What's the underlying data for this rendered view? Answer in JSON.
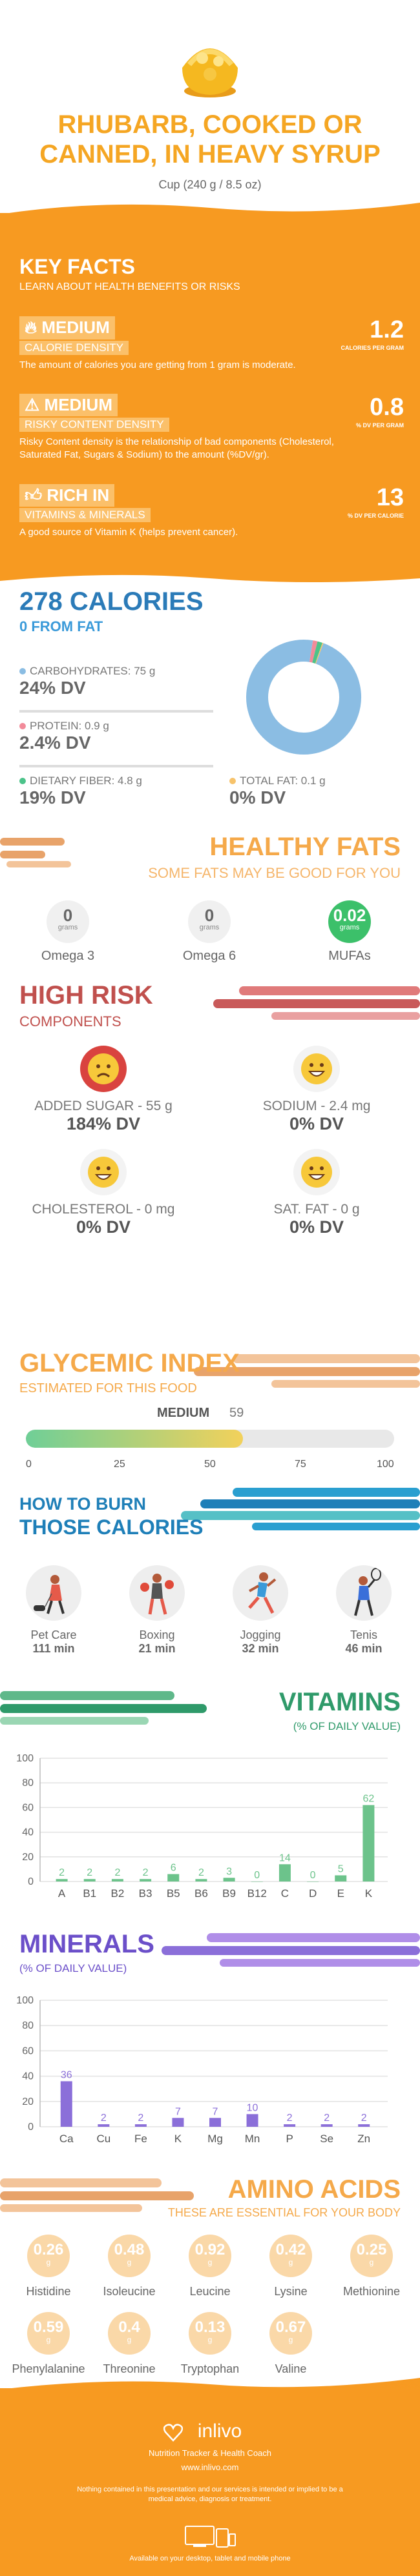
{
  "header": {
    "title_line1": "RHUBARB, COOKED OR",
    "title_line2": "CANNED, IN HEAVY SYRUP",
    "serving": "Cup (240 g / 8.5 oz)"
  },
  "key_facts": {
    "title": "KEY FACTS",
    "subtitle": "LEARN ABOUT HEALTH BENEFITS OR RISKS",
    "items": [
      {
        "level": "MEDIUM",
        "name": "CALORIE DENSITY",
        "desc": "The amount of calories you are getting from 1 gram is moderate.",
        "value": "1.2",
        "unit": "CALORIES PER GRAM",
        "icon": "flame-icon"
      },
      {
        "level": "MEDIUM",
        "name": "RISKY CONTENT DENSITY",
        "desc": "Risky Content density is the relationship of bad components (Cholesterol, Saturated Fat, Sugars & Sodium) to the amount (%DV/gr).",
        "value": "0.8",
        "unit": "% DV PER GRAM",
        "icon": "warning-icon"
      },
      {
        "level": "RICH  IN",
        "name": "VITAMINS & MINERALS",
        "desc": "A good source of Vitamin K (helps prevent cancer).",
        "value": "13",
        "unit": "% DV PER CALORIE",
        "icon": "thumbs-up-icon"
      }
    ]
  },
  "calories": {
    "title": "278 CALORIES",
    "from_fat": "0 FROM FAT",
    "carbs_label": "CARBOHYDRATES: 75 g",
    "carbs_dv": "24% DV",
    "protein_label": "PROTEIN: 0.9 g",
    "protein_dv": "2.4% DV",
    "fiber_label": "DIETARY FIBER: 4.8 g",
    "fiber_dv": "19% DV",
    "fat_label": "TOTAL FAT: 0.1 g",
    "fat_dv": "0% DV",
    "donut": {
      "carbs": 97,
      "protein": 1.3,
      "fiber": 1.4,
      "fat": 0.3
    },
    "colors": {
      "carbs": "#8bbde3",
      "protein": "#f28b9a",
      "fiber": "#4cc38a",
      "fat": "#f7c36b"
    }
  },
  "healthy_fats": {
    "title": "HEALTHY FATS",
    "subtitle": "SOME FATS MAY BE GOOD FOR YOU",
    "items": [
      {
        "value": "0",
        "unit": "grams",
        "label": "Omega 3"
      },
      {
        "value": "0",
        "unit": "grams",
        "label": "Omega 6"
      },
      {
        "value": "0.02",
        "unit": "grams",
        "label": "MUFAs"
      }
    ]
  },
  "high_risk": {
    "title": "HIGH RISK",
    "subtitle": "COMPONENTS",
    "items": [
      {
        "label": "ADDED SUGAR - 55 g",
        "dv": "184% DV",
        "face": "worried-face-icon"
      },
      {
        "label": "SODIUM - 2.4 mg",
        "dv": "0% DV",
        "face": "grin-face-icon"
      },
      {
        "label": "CHOLESTEROL - 0 mg",
        "dv": "0% DV",
        "face": "grin-face-icon"
      },
      {
        "label": "SAT. FAT - 0 g",
        "dv": "0% DV",
        "face": "grin-face-icon"
      }
    ]
  },
  "glycemic": {
    "title": "GLYCEMIC INDEX",
    "subtitle": "ESTIMATED FOR THIS FOOD",
    "level": "MEDIUM",
    "value": "59",
    "fraction": 0.59,
    "ticks": [
      "0",
      "25",
      "50",
      "75",
      "100"
    ]
  },
  "burn": {
    "title_small": "HOW TO BURN",
    "title_big": "THOSE CALORIES",
    "activities": [
      {
        "label": "Pet Care",
        "minutes": "111 min",
        "icon": "dog-walking-icon"
      },
      {
        "label": "Boxing",
        "minutes": "21 min",
        "icon": "boxing-icon"
      },
      {
        "label": "Jogging",
        "minutes": "32 min",
        "icon": "jogging-icon"
      },
      {
        "label": "Tenis",
        "minutes": "46 min",
        "icon": "tennis-icon"
      }
    ]
  },
  "vitamins": {
    "title": "VITAMINS",
    "subtitle": "(% OF DAILY VALUE)"
  },
  "minerals": {
    "title": "MINERALS",
    "subtitle": "(% OF DAILY VALUE)"
  },
  "chart_data": [
    {
      "type": "bar",
      "title": "VITAMINS",
      "subtitle": "(% OF DAILY VALUE)",
      "categories": [
        "A",
        "B1",
        "B2",
        "B3",
        "B5",
        "B6",
        "B9",
        "B12",
        "C",
        "D",
        "E",
        "K"
      ],
      "values": [
        2,
        2,
        2,
        2,
        6,
        2,
        3,
        0,
        14,
        0,
        5,
        62
      ],
      "ylim": [
        0,
        100
      ],
      "yticks": [
        "0",
        "20",
        "40",
        "60",
        "80",
        "100"
      ],
      "grid": true,
      "color": "#6cc38b"
    },
    {
      "type": "bar",
      "title": "MINERALS",
      "subtitle": "(% OF DAILY VALUE)",
      "categories": [
        "Ca",
        "Cu",
        "Fe",
        "K",
        "Mg",
        "Mn",
        "P",
        "Se",
        "Zn"
      ],
      "values": [
        36,
        2,
        2,
        7,
        7,
        10,
        2,
        2,
        2
      ],
      "ylim": [
        0,
        100
      ],
      "yticks": [
        "0",
        "20",
        "40",
        "60",
        "80",
        "100"
      ],
      "grid": true,
      "color": "#8b6fd9"
    }
  ],
  "amino": {
    "title": "AMINO ACIDS",
    "subtitle": "THESE ARE ESSENTIAL FOR YOUR BODY",
    "unit": "g",
    "items": [
      {
        "value": "0.26",
        "label": "Histidine"
      },
      {
        "value": "0.48",
        "label": "Isoleucine"
      },
      {
        "value": "0.92",
        "label": "Leucine"
      },
      {
        "value": "0.42",
        "label": "Lysine"
      },
      {
        "value": "0.25",
        "label": "Methionine"
      },
      {
        "value": "0.59",
        "label": "Phenylalanine"
      },
      {
        "value": "0.4",
        "label": "Threonine"
      },
      {
        "value": "0.13",
        "label": "Tryptophan"
      },
      {
        "value": "0.67",
        "label": "Valine"
      }
    ]
  },
  "footer": {
    "brand": "inlivo",
    "tagline": "Nutrition Tracker & Health Coach",
    "url": "www.inlivo.com",
    "disclaimer": "Nothing contained in this presentation and our services is intended or implied to be a medical advice, diagnosis or treatment.",
    "available": "Available on your desktop, tablet and mobile phone"
  }
}
